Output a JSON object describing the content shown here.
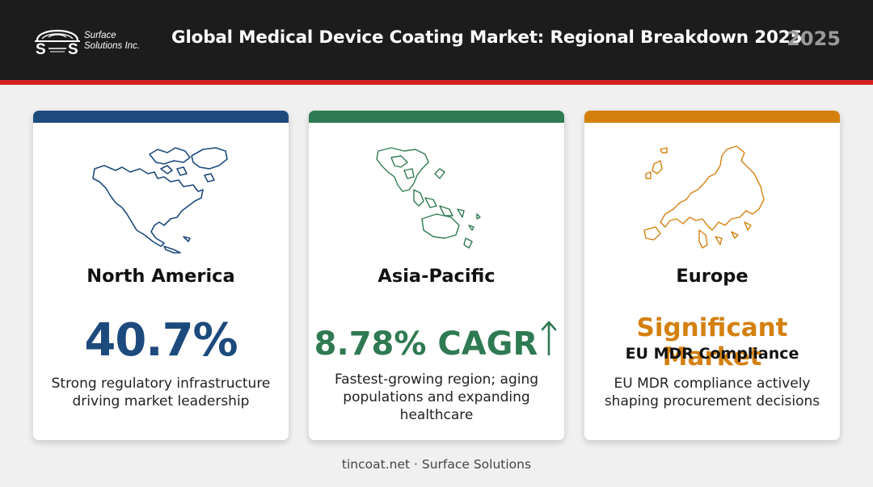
{
  "header": {
    "logo_line1": "Surface",
    "logo_line2": "Solutions Inc.",
    "title": "Global Medical Device Coating Market: Regional Breakdown 2025",
    "year": "2025"
  },
  "colors": {
    "north_america": "#1d4a7d",
    "asia_pacific": "#2f7a52",
    "europe": "#d4800f",
    "header_bg": "#1c1c1c",
    "header_accent": "#d42222"
  },
  "cards": [
    {
      "region": "North America",
      "stat": "40.7%",
      "description": "Strong regulatory infrastructure driving market leadership",
      "icon": "north-america-map-icon"
    },
    {
      "region": "Asia-Pacific",
      "stat": "8.78% CAGR",
      "stat_icon": "arrow-up-icon",
      "description": "Fastest-growing region; aging populations and expanding healthcare",
      "icon": "asia-pacific-map-icon"
    },
    {
      "region": "Europe",
      "stat": "Significant Market",
      "substat": "EU MDR Compliance",
      "description": "EU MDR compliance actively shaping procurement decisions",
      "icon": "europe-map-icon"
    }
  ],
  "footer": "tincoat.net · Surface Solutions"
}
